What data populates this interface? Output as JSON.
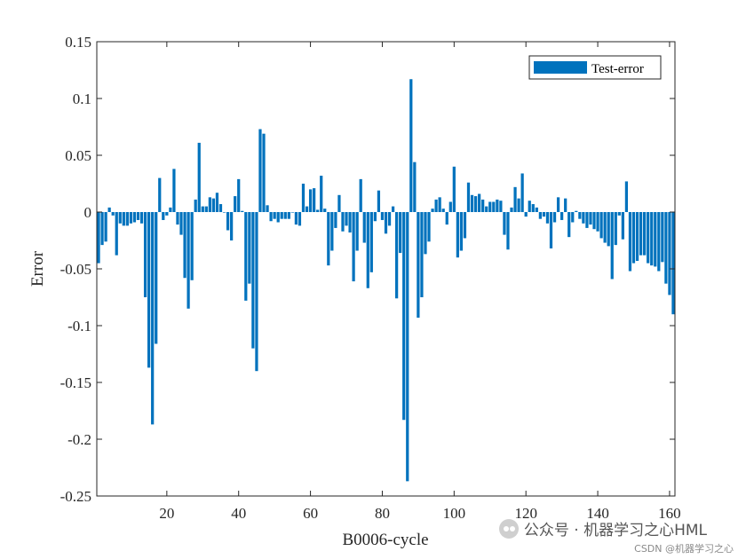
{
  "watermark": {
    "main": "公众号 · 机器学习之心HML",
    "sub": "CSDN @机器学习之心"
  },
  "colors": {
    "bar": "#0072BD",
    "axis": "#262626",
    "background": "#ffffff"
  },
  "chart_data": {
    "type": "bar",
    "title": "",
    "xlabel": "B0006-cycle",
    "ylabel": "Error",
    "xlim": [
      0.5,
      161.5
    ],
    "ylim": [
      -0.25,
      0.15
    ],
    "xticks": [
      20,
      40,
      60,
      80,
      100,
      120,
      140,
      160
    ],
    "yticks": [
      -0.25,
      -0.2,
      -0.15,
      -0.1,
      -0.05,
      0,
      0.05,
      0.1,
      0.15
    ],
    "ytick_labels": [
      "-0.25",
      "-0.2",
      "-0.15",
      "-0.1",
      "-0.05",
      "0",
      "0.05",
      "0.1",
      "0.15"
    ],
    "grid": false,
    "legend": {
      "position": "top-right",
      "entries": [
        "Test-error"
      ]
    },
    "series": [
      {
        "name": "Test-error",
        "x": [
          1,
          2,
          3,
          4,
          5,
          6,
          7,
          8,
          9,
          10,
          11,
          12,
          13,
          14,
          15,
          16,
          17,
          18,
          19,
          20,
          21,
          22,
          23,
          24,
          25,
          26,
          27,
          28,
          29,
          30,
          31,
          32,
          33,
          34,
          35,
          36,
          37,
          38,
          39,
          40,
          41,
          42,
          43,
          44,
          45,
          46,
          47,
          48,
          49,
          50,
          51,
          52,
          53,
          54,
          55,
          56,
          57,
          58,
          59,
          60,
          61,
          62,
          63,
          64,
          65,
          66,
          67,
          68,
          69,
          70,
          71,
          72,
          73,
          74,
          75,
          76,
          77,
          78,
          79,
          80,
          81,
          82,
          83,
          84,
          85,
          86,
          87,
          88,
          89,
          90,
          91,
          92,
          93,
          94,
          95,
          96,
          97,
          98,
          99,
          100,
          101,
          102,
          103,
          104,
          105,
          106,
          107,
          108,
          109,
          110,
          111,
          112,
          113,
          114,
          115,
          116,
          117,
          118,
          119,
          120,
          121,
          122,
          123,
          124,
          125,
          126,
          127,
          128,
          129,
          130,
          131,
          132,
          133,
          134,
          135,
          136,
          137,
          138,
          139,
          140,
          141,
          142,
          143,
          144,
          145,
          146,
          147,
          148,
          149,
          150,
          151,
          152,
          153,
          154,
          155,
          156,
          157,
          158,
          159,
          160,
          161
        ],
        "values": [
          -0.045,
          -0.029,
          -0.026,
          0.004,
          -0.003,
          -0.038,
          -0.01,
          -0.012,
          -0.012,
          -0.01,
          -0.009,
          -0.007,
          -0.01,
          -0.075,
          -0.137,
          -0.187,
          -0.116,
          0.03,
          -0.007,
          -0.003,
          0.004,
          0.038,
          -0.011,
          -0.02,
          -0.058,
          -0.085,
          -0.06,
          0.011,
          0.061,
          0.005,
          0.005,
          0.013,
          0.012,
          0.017,
          0.007,
          0,
          -0.016,
          -0.025,
          0.014,
          0.029,
          0.001,
          -0.078,
          -0.063,
          -0.12,
          -0.14,
          0.073,
          0.069,
          0.006,
          -0.008,
          -0.006,
          -0.009,
          -0.006,
          -0.006,
          -0.006,
          0,
          -0.011,
          -0.012,
          0.025,
          0.005,
          0.02,
          0.021,
          0.002,
          0.032,
          0.003,
          -0.047,
          -0.034,
          -0.014,
          0.015,
          -0.017,
          -0.012,
          -0.018,
          -0.061,
          -0.034,
          0.029,
          -0.027,
          -0.067,
          -0.053,
          -0.008,
          0.019,
          -0.007,
          -0.019,
          -0.012,
          0.005,
          -0.076,
          -0.036,
          -0.183,
          -0.237,
          0.117,
          0.044,
          -0.093,
          -0.075,
          -0.037,
          -0.026,
          0.003,
          0.011,
          0.013,
          0.003,
          -0.011,
          0.009,
          0.04,
          -0.04,
          -0.034,
          -0.023,
          0.026,
          0.015,
          0.014,
          0.016,
          0.011,
          0.005,
          0.009,
          0.009,
          0.011,
          0.01,
          -0.02,
          -0.033,
          0.004,
          0.022,
          0.012,
          0.034,
          -0.004,
          0.01,
          0.007,
          0.004,
          -0.006,
          -0.004,
          -0.01,
          -0.032,
          -0.009,
          0.013,
          -0.007,
          0.012,
          -0.022,
          -0.009,
          0.001,
          -0.006,
          -0.01,
          -0.014,
          -0.011,
          -0.015,
          -0.017,
          -0.023,
          -0.027,
          -0.03,
          -0.059,
          -0.029,
          -0.003,
          -0.024,
          0.027,
          -0.052,
          -0.045,
          -0.043,
          -0.038,
          -0.038,
          -0.045,
          -0.047,
          -0.048,
          -0.052,
          -0.044,
          -0.063,
          -0.073,
          -0.09
        ]
      }
    ]
  }
}
